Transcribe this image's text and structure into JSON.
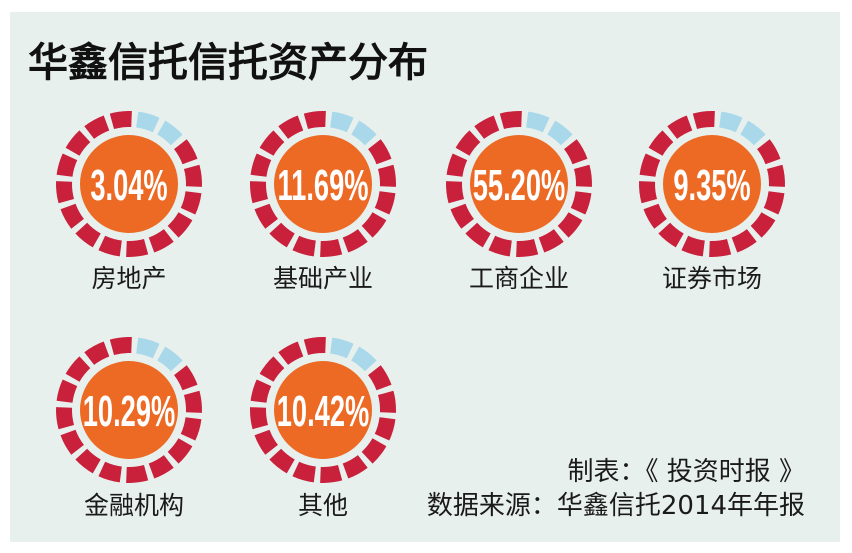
{
  "colors": {
    "background": "#e8f0ed",
    "ring": "#c9203c",
    "ring_accent": "#a9d8ea",
    "center": "#ec6a24",
    "value_text": "#ffffff"
  },
  "chart_data": {
    "type": "pie",
    "title": "华鑫信托信托资产分布",
    "categories": [
      "房地产",
      "基础产业",
      "工商企业",
      "证券市场",
      "金融机构",
      "其他"
    ],
    "values": [
      3.04,
      11.69,
      55.2,
      9.35,
      10.29,
      10.42
    ],
    "value_labels": [
      "3.04%",
      "11.69%",
      "55.20%",
      "9.35%",
      "10.29%",
      "10.42%"
    ]
  },
  "footer": {
    "credit": "制表：《 投资时报 》",
    "source": "数据来源：华鑫信托2014年年报"
  }
}
